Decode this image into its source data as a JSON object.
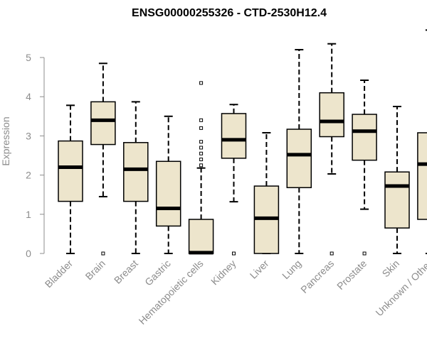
{
  "chart_data": {
    "type": "boxplot",
    "title": "ENSG00000255326 - CTD-2530H12.4",
    "xlabel": "",
    "ylabel": "Expression",
    "ylim": [
      0,
      5.5
    ],
    "yticks": [
      0,
      1,
      2,
      3,
      4,
      5
    ],
    "grid": false,
    "legend": "none",
    "box_color": "#ede5cc",
    "categories": [
      "Bladder",
      "Brain",
      "Breast",
      "Gastric",
      "Hematopoietic cells",
      "Kidney",
      "Liver",
      "Lung",
      "Pancreas",
      "Prostate",
      "Skin",
      "Unknown / Other"
    ],
    "boxes": [
      {
        "category": "Bladder",
        "min": 0.0,
        "q1": 1.33,
        "median": 2.2,
        "q3": 2.87,
        "max": 3.78,
        "outliers": []
      },
      {
        "category": "Brain",
        "min": 1.45,
        "q1": 2.78,
        "median": 3.4,
        "q3": 3.87,
        "max": 4.85,
        "outliers": [
          0.0
        ]
      },
      {
        "category": "Breast",
        "min": 0.0,
        "q1": 1.33,
        "median": 2.15,
        "q3": 2.83,
        "max": 3.87,
        "outliers": []
      },
      {
        "category": "Gastric",
        "min": 0.0,
        "q1": 0.7,
        "median": 1.15,
        "q3": 2.35,
        "max": 3.5,
        "outliers": []
      },
      {
        "category": "Hematopoietic cells",
        "min": 0.0,
        "q1": 0.0,
        "median": 0.02,
        "q3": 0.87,
        "max": 2.18,
        "outliers": [
          2.25,
          2.4,
          2.55,
          2.7,
          2.85,
          3.2,
          3.4,
          4.35
        ]
      },
      {
        "category": "Kidney",
        "min": 1.32,
        "q1": 2.43,
        "median": 2.9,
        "q3": 3.57,
        "max": 3.8,
        "outliers": [
          0.0
        ]
      },
      {
        "category": "Liver",
        "min": 0.0,
        "q1": 0.0,
        "median": 0.9,
        "q3": 1.72,
        "max": 3.08,
        "outliers": []
      },
      {
        "category": "Lung",
        "min": 0.0,
        "q1": 1.68,
        "median": 2.52,
        "q3": 3.17,
        "max": 5.2,
        "outliers": []
      },
      {
        "category": "Pancreas",
        "min": 2.03,
        "q1": 2.98,
        "median": 3.37,
        "q3": 4.1,
        "max": 5.35,
        "outliers": [
          0.0
        ]
      },
      {
        "category": "Prostate",
        "min": 1.13,
        "q1": 2.38,
        "median": 3.12,
        "q3": 3.55,
        "max": 4.42,
        "outliers": [
          0.0
        ]
      },
      {
        "category": "Skin",
        "min": 0.0,
        "q1": 0.65,
        "median": 1.72,
        "q3": 2.08,
        "max": 3.75,
        "outliers": []
      },
      {
        "category": "Unknown / Other",
        "min": 0.0,
        "q1": 0.87,
        "median": 2.28,
        "q3": 3.08,
        "max": 5.7,
        "outliers": []
      }
    ]
  }
}
